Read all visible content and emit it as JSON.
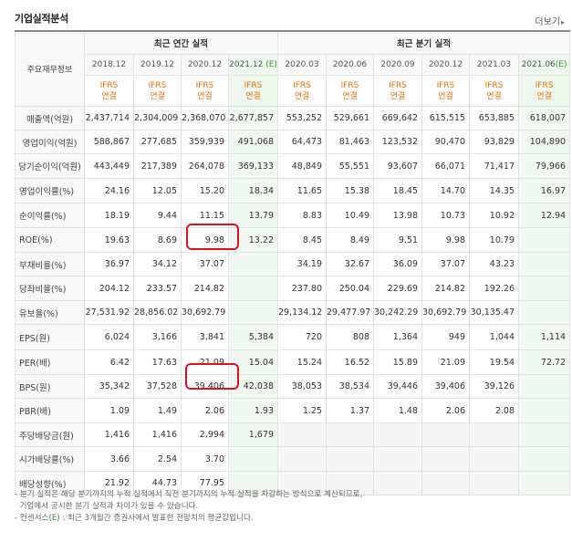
{
  "header": {
    "title": "기업실적분석",
    "more": "더보기",
    "more_icon": "chevron-right-icon"
  },
  "table": {
    "corner_label": "주요재무정보",
    "group_annual": "최근 연간 실적",
    "group_quarter": "최근 분기 실적",
    "annual_periods": [
      "2018.12",
      "2019.12",
      "2020.12",
      "2021.12"
    ],
    "annual_estimate_suffix": "(E)",
    "quarter_periods": [
      "2020.03",
      "2020.06",
      "2020.09",
      "2020.12",
      "2021.03",
      "2021.06"
    ],
    "quarter_estimate_suffix": "(E)",
    "ifrs_top": "IFRS",
    "ifrs_bottom": "연결",
    "rows": [
      {
        "label": "매출액(억원)",
        "values": [
          "2,437,714",
          "2,304,009",
          "2,368,070",
          "2,677,857",
          "553,252",
          "529,661",
          "669,642",
          "615,515",
          "653,885",
          "618,007"
        ]
      },
      {
        "label": "영업이익(억원)",
        "values": [
          "588,867",
          "277,685",
          "359,939",
          "491,068",
          "64,473",
          "81,463",
          "123,532",
          "90,470",
          "93,829",
          "104,890"
        ]
      },
      {
        "label": "당기순이익(억원)",
        "values": [
          "443,449",
          "217,389",
          "264,078",
          "369,133",
          "48,849",
          "55,551",
          "93,607",
          "66,071",
          "71,417",
          "79,966"
        ]
      },
      {
        "label": "영업이익률(%)",
        "values": [
          "24.16",
          "12.05",
          "15.20",
          "18.34",
          "11.65",
          "15.38",
          "18.45",
          "14.70",
          "14.35",
          "16.97"
        ]
      },
      {
        "label": "순이익률(%)",
        "values": [
          "18.19",
          "9.44",
          "11.15",
          "13.79",
          "8.83",
          "10.49",
          "13.98",
          "10.73",
          "10.92",
          "12.94"
        ]
      },
      {
        "label": "ROE(%)",
        "values": [
          "19.63",
          "8.69",
          "9.98",
          "13.22",
          "8.45",
          "8.49",
          "9.51",
          "9.98",
          "10.79",
          ""
        ]
      },
      {
        "label": "부채비율(%)",
        "values": [
          "36.97",
          "34.12",
          "37.07",
          "",
          "34.19",
          "32.67",
          "36.09",
          "37.07",
          "43.23",
          ""
        ]
      },
      {
        "label": "당좌비율(%)",
        "values": [
          "204.12",
          "233.57",
          "214.82",
          "",
          "237.80",
          "250.04",
          "229.69",
          "214.82",
          "192.26",
          ""
        ]
      },
      {
        "label": "유보율(%)",
        "values": [
          "27,531.92",
          "28,856.02",
          "30,692.79",
          "",
          "29,134.12",
          "29,477.97",
          "30,242.29",
          "30,692.79",
          "30,135.47",
          ""
        ]
      },
      {
        "label": "EPS(원)",
        "values": [
          "6,024",
          "3,166",
          "3,841",
          "5,384",
          "720",
          "808",
          "1,364",
          "949",
          "1,044",
          "1,114"
        ]
      },
      {
        "label": "PER(배)",
        "values": [
          "6.42",
          "17.63",
          "21.09",
          "15.04",
          "15.24",
          "16.52",
          "15.89",
          "21.09",
          "19.54",
          "72.72"
        ]
      },
      {
        "label": "BPS(원)",
        "values": [
          "35,342",
          "37,528",
          "39,406",
          "42,038",
          "38,053",
          "38,534",
          "39,446",
          "39,406",
          "39,126",
          ""
        ]
      },
      {
        "label": "PBR(배)",
        "values": [
          "1.09",
          "1.49",
          "2.06",
          "1.93",
          "1.25",
          "1.37",
          "1.48",
          "2.06",
          "2.08",
          ""
        ]
      },
      {
        "label": "주당배당금(원)",
        "values": [
          "1,416",
          "1,416",
          "2,994",
          "1,679",
          "",
          "",
          "",
          "",
          "",
          ""
        ]
      },
      {
        "label": "시가배당률(%)",
        "values": [
          "3.66",
          "2.54",
          "3.70",
          "",
          "",
          "",
          "",
          "",
          "",
          ""
        ]
      },
      {
        "label": "배당성향(%)",
        "values": [
          "21.92",
          "44.73",
          "77.95",
          "",
          "",
          "",
          "",
          "",
          "",
          ""
        ]
      }
    ]
  },
  "highlight_color": "#e0101c",
  "estimate_color": "#3d8e3d",
  "ifrs_color": "#e8730f",
  "notes": {
    "line1": "- 분기 실적은 해당 분기까지의 누적 실적에서 직전 분기까지의 누적 실적을 차감하는 방식으로 계산되므로,",
    "line2": "  기업에서 공시한 분기 실적과 차이가 있을 수 있습니다.",
    "line3_pre": "- 컨센서스(",
    "line3_e": "E",
    "line3_post": ") : 최근 3개월간 증권사에서 발표한 전망치의 평균값입니다."
  }
}
